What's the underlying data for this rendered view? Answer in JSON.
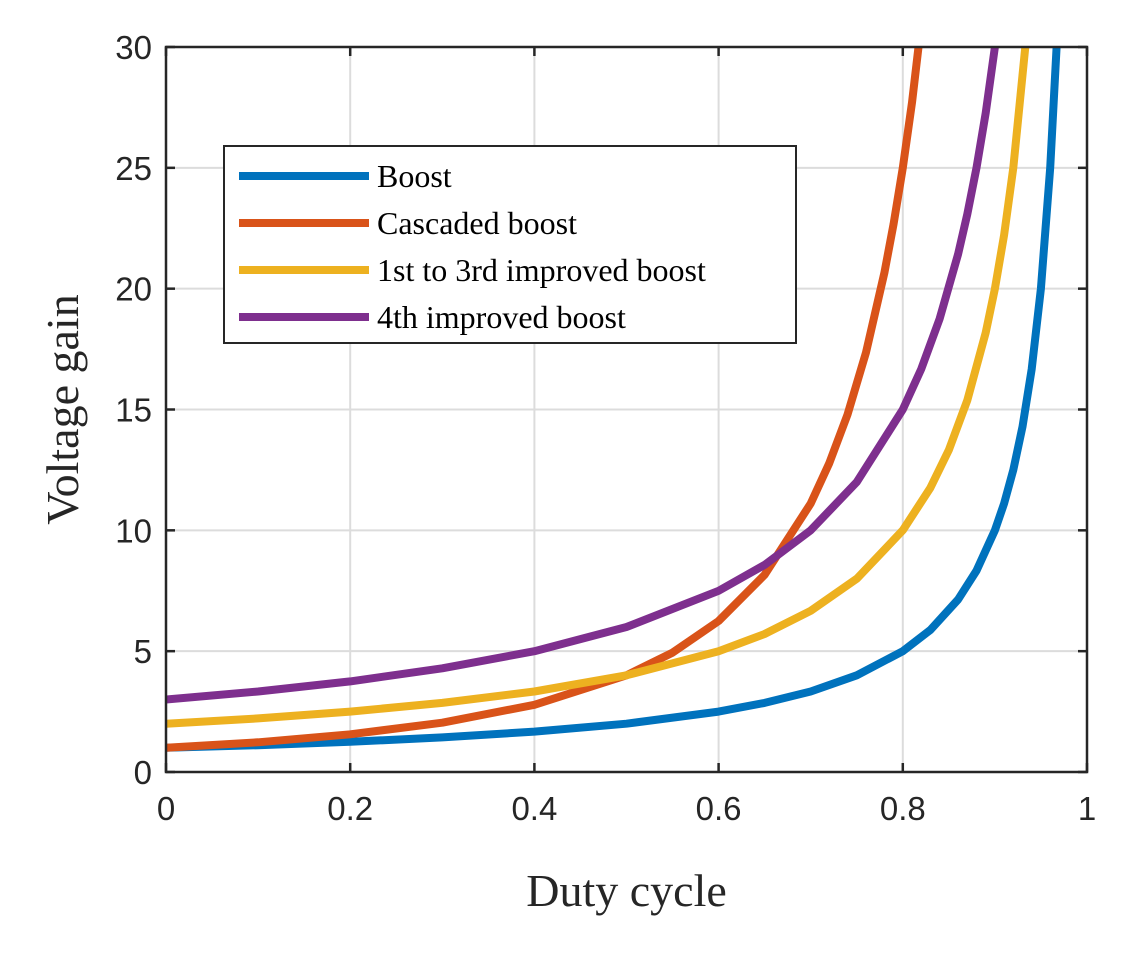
{
  "chart_data": {
    "type": "line",
    "title": "",
    "xlabel": "Duty cycle",
    "ylabel": "Voltage gain",
    "xlim": [
      0,
      1
    ],
    "ylim": [
      0,
      30
    ],
    "xticks": [
      0,
      0.2,
      0.4,
      0.6,
      0.8,
      1
    ],
    "xtick_labels": [
      "0",
      "0.2",
      "0.4",
      "0.6",
      "0.8",
      "1"
    ],
    "yticks": [
      0,
      5,
      10,
      15,
      20,
      25,
      30
    ],
    "ytick_labels": [
      "0",
      "5",
      "10",
      "15",
      "20",
      "25",
      "30"
    ],
    "grid": true,
    "legend_position": "top-left",
    "series": [
      {
        "name": "Boost",
        "color": "#0072BD",
        "x": [
          0,
          0.1,
          0.2,
          0.3,
          0.4,
          0.5,
          0.6,
          0.65,
          0.7,
          0.75,
          0.8,
          0.83,
          0.86,
          0.88,
          0.9,
          0.91,
          0.92,
          0.93,
          0.94,
          0.95,
          0.96,
          0.967
        ],
        "y": [
          1,
          1.11,
          1.25,
          1.43,
          1.67,
          2,
          2.5,
          2.86,
          3.33,
          4,
          5,
          5.88,
          7.14,
          8.33,
          10,
          11.11,
          12.5,
          14.29,
          16.67,
          20,
          25,
          30
        ]
      },
      {
        "name": "Cascaded boost",
        "color": "#D95319",
        "x": [
          0,
          0.1,
          0.2,
          0.3,
          0.4,
          0.5,
          0.55,
          0.6,
          0.65,
          0.7,
          0.72,
          0.74,
          0.76,
          0.78,
          0.79,
          0.8,
          0.81,
          0.817
        ],
        "y": [
          1,
          1.23,
          1.56,
          2.04,
          2.78,
          4,
          4.94,
          6.25,
          8.16,
          11.11,
          12.76,
          14.79,
          17.36,
          20.66,
          22.68,
          25,
          27.7,
          30
        ]
      },
      {
        "name": "1st to 3rd improved boost",
        "color": "#EDB120",
        "x": [
          0,
          0.1,
          0.2,
          0.3,
          0.4,
          0.5,
          0.6,
          0.65,
          0.7,
          0.75,
          0.8,
          0.83,
          0.85,
          0.87,
          0.89,
          0.9,
          0.91,
          0.92,
          0.933
        ],
        "y": [
          2,
          2.22,
          2.5,
          2.86,
          3.33,
          4,
          5,
          5.71,
          6.67,
          8,
          10,
          11.76,
          13.33,
          15.38,
          18.18,
          20,
          22.22,
          25,
          30
        ]
      },
      {
        "name": "4th improved boost",
        "color": "#7E2F8E",
        "x": [
          0,
          0.1,
          0.2,
          0.3,
          0.4,
          0.5,
          0.6,
          0.65,
          0.7,
          0.75,
          0.8,
          0.82,
          0.84,
          0.86,
          0.87,
          0.88,
          0.89,
          0.9
        ],
        "y": [
          3,
          3.33,
          3.75,
          4.29,
          5,
          6,
          7.5,
          8.57,
          10,
          12,
          15,
          16.67,
          18.75,
          21.43,
          23.08,
          25,
          27.27,
          30
        ]
      }
    ]
  }
}
